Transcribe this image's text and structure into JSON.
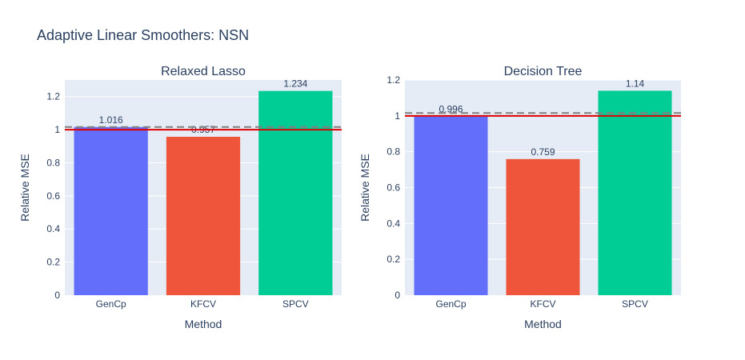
{
  "chart_data": {
    "type": "bar",
    "title": "Adaptive Linear Smoothers: NSN",
    "subplots": [
      {
        "title": "Relaxed Lasso",
        "xlabel": "Method",
        "ylabel": "Relative MSE",
        "categories": [
          "GenCp",
          "KFCV",
          "SPCV"
        ],
        "values": [
          1.016,
          0.957,
          1.234
        ],
        "labels": [
          "1.016",
          "0.957",
          "1.234"
        ],
        "colors": [
          "#636efa",
          "#ef553b",
          "#00cc96"
        ],
        "ylim": [
          0,
          1.3
        ],
        "yticks": [
          0,
          0.2,
          0.4,
          0.6,
          0.8,
          1,
          1.2
        ],
        "ytick_labels": [
          "0",
          "0.2",
          "0.4",
          "0.6",
          "0.8",
          "1",
          "1.2"
        ],
        "reference_line": 1.0,
        "dashed_line": 1.016
      },
      {
        "title": "Decision Tree",
        "xlabel": "Method",
        "ylabel": "Relative MSE",
        "categories": [
          "GenCp",
          "KFCV",
          "SPCV"
        ],
        "values": [
          0.996,
          0.759,
          1.14
        ],
        "labels": [
          "0.996",
          "0.759",
          "1.14"
        ],
        "colors": [
          "#636efa",
          "#ef553b",
          "#00cc96"
        ],
        "ylim": [
          0,
          1.2
        ],
        "yticks": [
          0,
          0.2,
          0.4,
          0.6,
          0.8,
          1,
          1.2
        ],
        "ytick_labels": [
          "0",
          "0.2",
          "0.4",
          "0.6",
          "0.8",
          "1",
          "1.2"
        ],
        "reference_line": 1.0,
        "dashed_line": 1.016
      }
    ],
    "plot_bg": "#e5ecf6",
    "grid_color": "#ffffff",
    "reference_color": "#e00000",
    "dashed_color": "#808080"
  }
}
